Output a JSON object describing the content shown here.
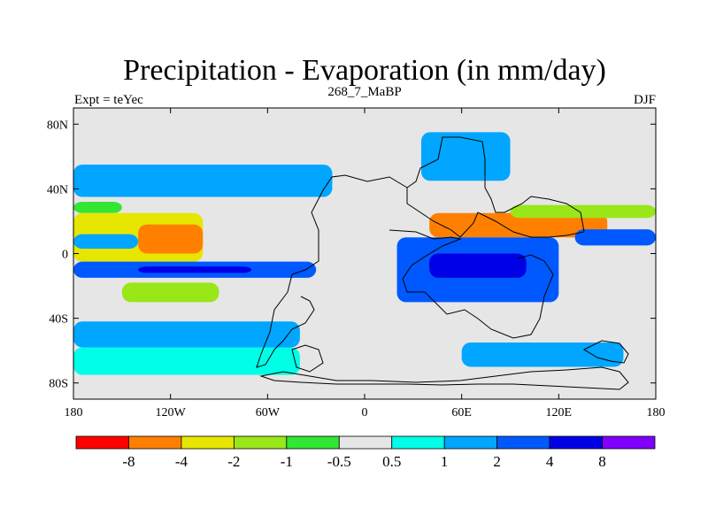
{
  "chart_data": {
    "type": "heatmap",
    "title": "Precipitation - Evaporation (in mm/day)",
    "subtitle": "268_7_MaBP",
    "left_label": "Expt = teYec",
    "right_label": "DJF",
    "xlim": [
      -180,
      180
    ],
    "ylim": [
      -90,
      90
    ],
    "x_ticks": [
      {
        "value": -180,
        "label": "180"
      },
      {
        "value": -120,
        "label": "120W"
      },
      {
        "value": -60,
        "label": "60W"
      },
      {
        "value": 0,
        "label": "0"
      },
      {
        "value": 60,
        "label": "60E"
      },
      {
        "value": 120,
        "label": "120E"
      },
      {
        "value": 180,
        "label": "180"
      }
    ],
    "y_ticks": [
      {
        "value": 80,
        "label": "80N"
      },
      {
        "value": 40,
        "label": "40N"
      },
      {
        "value": 0,
        "label": "0"
      },
      {
        "value": -40,
        "label": "40S"
      },
      {
        "value": -80,
        "label": "80S"
      }
    ],
    "colorbar": {
      "colors": [
        "#ff0000",
        "#ff8000",
        "#e6e600",
        "#99e619",
        "#33e633",
        "#e6e6e6",
        "#00ffe6",
        "#00a6ff",
        "#0059ff",
        "#0000e6",
        "#8000ff"
      ],
      "boundaries": [
        "-8",
        "-4",
        "-2",
        "-1",
        "-0.5",
        "0.5",
        "1",
        "2",
        "4",
        "8"
      ]
    },
    "bands": [
      {
        "level": -1,
        "lat": [
          25,
          32
        ],
        "lon": [
          -180,
          -150
        ]
      },
      {
        "level": -3,
        "lat": [
          -5,
          25
        ],
        "lon": [
          -180,
          -100
        ]
      },
      {
        "level": -4,
        "lat": [
          0,
          18
        ],
        "lon": [
          -140,
          -100
        ]
      },
      {
        "level": -2,
        "lat": [
          -30,
          -18
        ],
        "lon": [
          -150,
          -90
        ]
      },
      {
        "level": 2,
        "lat": [
          3,
          12
        ],
        "lon": [
          -180,
          -140
        ]
      },
      {
        "level": 3,
        "lat": [
          -15,
          -5
        ],
        "lon": [
          -180,
          -30
        ]
      },
      {
        "level": 4,
        "lat": [
          -12,
          -8
        ],
        "lon": [
          -140,
          -70
        ]
      },
      {
        "level": 2,
        "lat": [
          35,
          55
        ],
        "lon": [
          -180,
          -20
        ]
      },
      {
        "level": 2,
        "lat": [
          -58,
          -42
        ],
        "lon": [
          -180,
          -40
        ]
      },
      {
        "level": 1,
        "lat": [
          -75,
          -58
        ],
        "lon": [
          -180,
          -40
        ]
      },
      {
        "level": -4,
        "lat": [
          10,
          25
        ],
        "lon": [
          40,
          150
        ]
      },
      {
        "level": -2,
        "lat": [
          22,
          30
        ],
        "lon": [
          90,
          180
        ]
      },
      {
        "level": 3,
        "lat": [
          -30,
          10
        ],
        "lon": [
          20,
          120
        ]
      },
      {
        "level": 4,
        "lat": [
          -15,
          0
        ],
        "lon": [
          40,
          100
        ]
      },
      {
        "level": 3,
        "lat": [
          5,
          15
        ],
        "lon": [
          130,
          180
        ]
      },
      {
        "level": 2,
        "lat": [
          45,
          75
        ],
        "lon": [
          35,
          90
        ]
      },
      {
        "level": 2,
        "lat": [
          -70,
          -55
        ],
        "lon": [
          60,
          160
        ]
      }
    ]
  }
}
